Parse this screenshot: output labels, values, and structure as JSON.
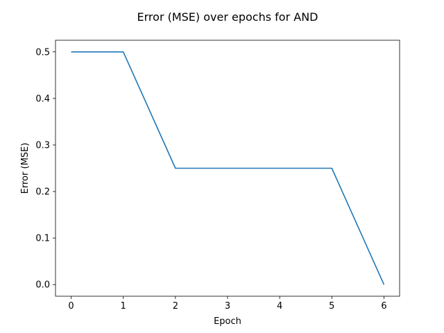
{
  "chart_data": {
    "type": "line",
    "title": "Error (MSE) over epochs for AND",
    "xlabel": "Epoch",
    "ylabel": "Error (MSE)",
    "x": [
      0,
      1,
      2,
      3,
      4,
      5,
      6
    ],
    "series": [
      {
        "values": [
          0.5,
          0.5,
          0.25,
          0.25,
          0.25,
          0.25,
          0.0
        ],
        "color": "#1f77b4"
      }
    ],
    "xlim": [
      -0.3,
      6.3
    ],
    "ylim": [
      -0.025,
      0.525
    ],
    "xticks": [
      0,
      1,
      2,
      3,
      4,
      5,
      6
    ],
    "xtick_labels": [
      "0",
      "1",
      "2",
      "3",
      "4",
      "5",
      "6"
    ],
    "yticks": [
      0.0,
      0.1,
      0.2,
      0.3,
      0.4,
      0.5
    ],
    "ytick_labels": [
      "0.0",
      "0.1",
      "0.2",
      "0.3",
      "0.4",
      "0.5"
    ],
    "grid": false,
    "legend": false
  }
}
